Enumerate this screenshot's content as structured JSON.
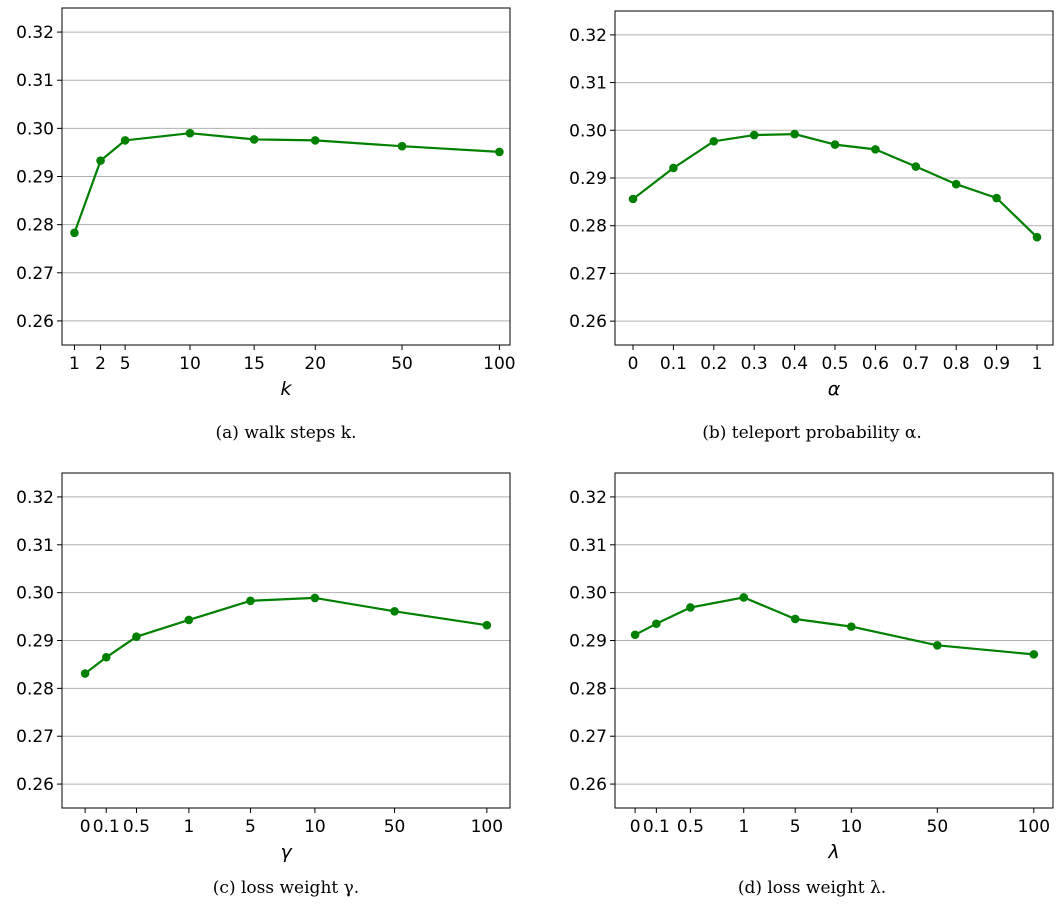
{
  "colors": {
    "series": "#008000"
  },
  "chart_data": [
    {
      "type": "line",
      "x": [
        "1",
        "2",
        "5",
        "10",
        "15",
        "20",
        "50",
        "100"
      ],
      "values": [
        0.2783,
        0.2933,
        0.2975,
        0.299,
        0.2977,
        0.2975,
        0.2963,
        0.2951
      ],
      "xlabel": "k",
      "ylabel": "",
      "ylim": [
        0.255,
        0.325
      ],
      "yticks": [
        "0.26",
        "0.27",
        "0.28",
        "0.29",
        "0.30",
        "0.31",
        "0.32"
      ],
      "grid": "horizontal",
      "caption": "(a)  walk steps k."
    },
    {
      "type": "line",
      "x": [
        "0",
        "0.1",
        "0.2",
        "0.3",
        "0.4",
        "0.5",
        "0.6",
        "0.7",
        "0.8",
        "0.9",
        "1"
      ],
      "values": [
        0.2856,
        0.2921,
        0.2977,
        0.299,
        0.2992,
        0.297,
        0.296,
        0.2924,
        0.2887,
        0.2858,
        0.2776
      ],
      "xlabel": "α",
      "ylabel": "",
      "ylim": [
        0.255,
        0.325
      ],
      "yticks": [
        "0.26",
        "0.27",
        "0.28",
        "0.29",
        "0.30",
        "0.31",
        "0.32"
      ],
      "grid": "horizontal",
      "caption": "(b)  teleport probability α."
    },
    {
      "type": "line",
      "x": [
        "0",
        "0.1",
        "0.5",
        "1",
        "5",
        "10",
        "50",
        "100"
      ],
      "values": [
        0.2831,
        0.2865,
        0.2908,
        0.2943,
        0.2983,
        0.2989,
        0.2961,
        0.2932
      ],
      "xlabel": "γ",
      "ylabel": "",
      "ylim": [
        0.255,
        0.325
      ],
      "yticks": [
        "0.26",
        "0.27",
        "0.28",
        "0.29",
        "0.30",
        "0.31",
        "0.32"
      ],
      "grid": "horizontal",
      "caption": "(c)  loss weight γ."
    },
    {
      "type": "line",
      "x": [
        "0",
        "0.1",
        "0.5",
        "1",
        "5",
        "10",
        "50",
        "100"
      ],
      "values": [
        0.2912,
        0.2935,
        0.2969,
        0.299,
        0.2945,
        0.2929,
        0.289,
        0.2871
      ],
      "xlabel": "λ",
      "ylabel": "",
      "ylim": [
        0.255,
        0.325
      ],
      "yticks": [
        "0.26",
        "0.27",
        "0.28",
        "0.29",
        "0.30",
        "0.31",
        "0.32"
      ],
      "grid": "horizontal",
      "caption": "(d)  loss weight λ."
    }
  ]
}
